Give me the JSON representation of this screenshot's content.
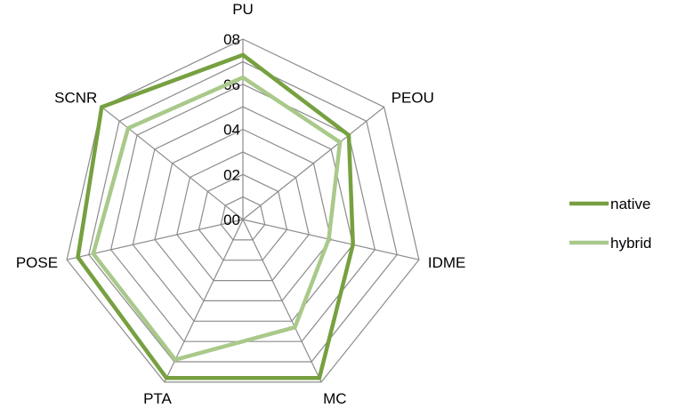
{
  "chart_data": {
    "type": "radar",
    "categories": [
      "PU",
      "PEOU",
      "IDME",
      "MC",
      "PTA",
      "POSE",
      "SCNR"
    ],
    "tick_labels": [
      "00",
      "02",
      "04",
      "06",
      "08"
    ],
    "rmax": 8,
    "grid": true,
    "legend_position": "right",
    "series": [
      {
        "name": "native",
        "values": [
          7.3,
          6.0,
          5.0,
          7.8,
          7.8,
          7.5,
          8.0
        ],
        "color": "#77a040"
      },
      {
        "name": "hybrid",
        "values": [
          6.3,
          5.5,
          3.9,
          5.3,
          6.9,
          6.8,
          6.5
        ],
        "color": "#a9c98a"
      }
    ],
    "grid_color": "#8c8c8c"
  }
}
